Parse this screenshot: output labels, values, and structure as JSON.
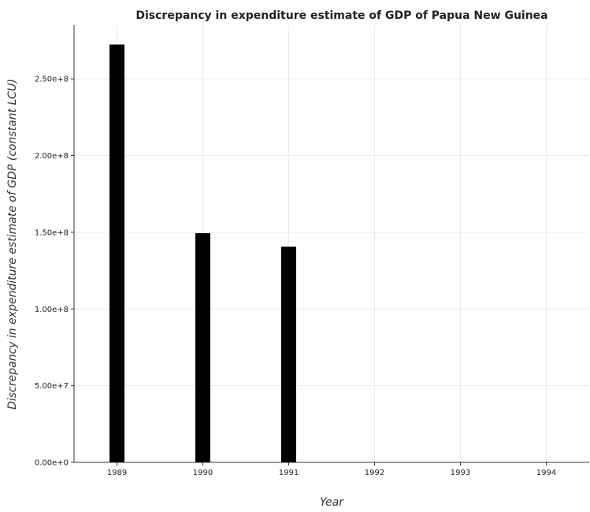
{
  "chart_data": {
    "type": "bar",
    "title": "Discrepancy in expenditure estimate of GDP of Papua New Guinea",
    "xlabel": "Year",
    "ylabel": "Discrepancy in expenditure estimate of GDP (constant LCU)",
    "categories": [
      "1989",
      "1990",
      "1991",
      "1992",
      "1993",
      "1994"
    ],
    "values": [
      272400000,
      149400000,
      140600000,
      0,
      0,
      0
    ],
    "ylim": [
      0,
      285000000
    ],
    "yticks": [
      0,
      50000000,
      100000000,
      150000000,
      200000000,
      250000000
    ],
    "ytick_labels": [
      "0.00e+0",
      "5.00e+7",
      "1.00e+8",
      "1.50e+8",
      "2.00e+8",
      "2.50e+8"
    ],
    "grid": true,
    "bar_color": "#000000",
    "legend": "none"
  }
}
